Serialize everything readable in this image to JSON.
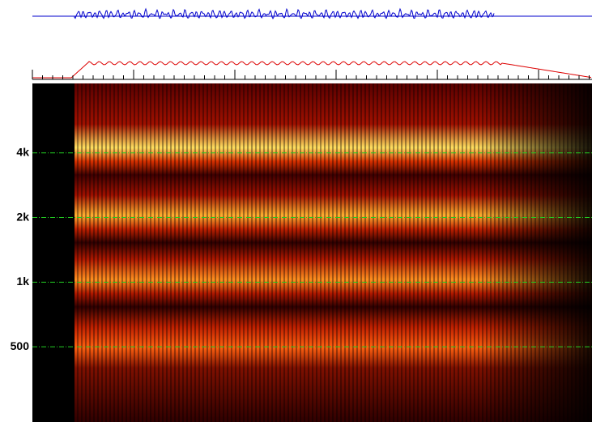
{
  "chart_data": {
    "type": "spectrogram",
    "ylim": [
      223,
      8430
    ],
    "ylog": true,
    "yticks": [
      {
        "value": 4000,
        "label": "4k"
      },
      {
        "value": 2000,
        "label": "2k"
      },
      {
        "value": 1000,
        "label": "1k"
      },
      500
    ],
    "grid": true,
    "grid_color": "#22cc22"
  }
}
